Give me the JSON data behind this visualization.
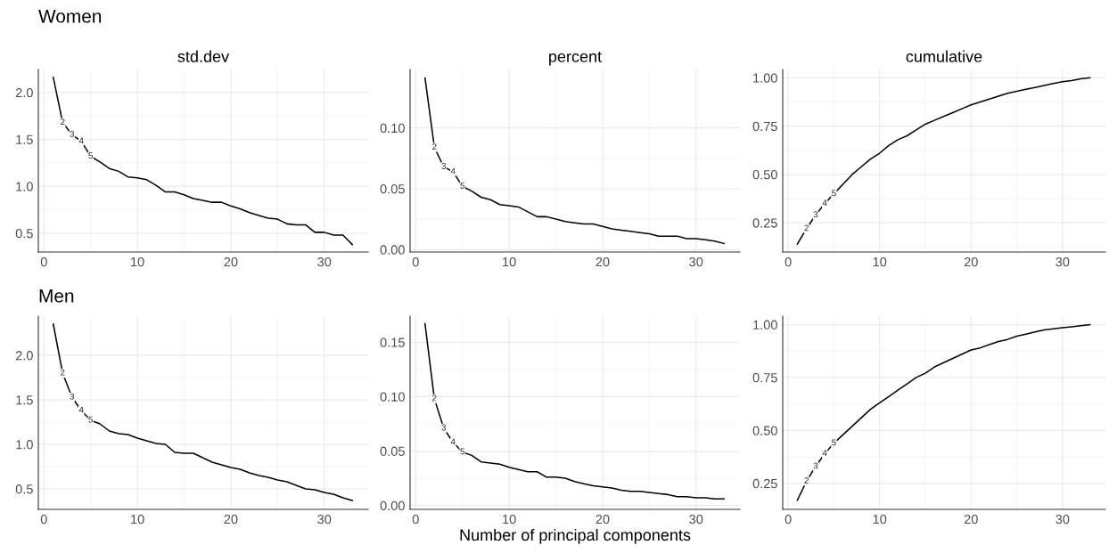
{
  "chart_data": [
    {
      "type": "line",
      "title": "std.dev",
      "annotations": [
        "Women",
        {
          "text": "2",
          "x": 2,
          "y": 1.68
        },
        {
          "text": "3",
          "x": 3,
          "y": 1.55
        },
        {
          "text": "4",
          "x": 4,
          "y": 1.48
        },
        {
          "text": "5",
          "x": 5,
          "y": 1.32
        }
      ],
      "x": [
        1,
        2,
        3,
        4,
        5,
        6,
        7,
        8,
        9,
        10,
        11,
        12,
        13,
        14,
        15,
        16,
        17,
        18,
        19,
        20,
        21,
        22,
        23,
        24,
        25,
        26,
        27,
        28,
        29,
        30,
        31,
        32,
        33
      ],
      "xlim": [
        -0.6,
        34.7
      ],
      "xticks": [
        0,
        10,
        20,
        30
      ],
      "ylim": [
        0.3,
        2.245
      ],
      "yticks": [
        {
          "value": 0.5,
          "label": "0.5"
        },
        {
          "value": 1.0,
          "label": "1.0"
        },
        {
          "value": 1.5,
          "label": "1.5"
        },
        {
          "value": 2.0,
          "label": "2.0"
        }
      ],
      "grid": true,
      "series": [
        {
          "color": "#000000",
          "values": [
            2.16,
            1.68,
            1.55,
            1.48,
            1.32,
            1.26,
            1.19,
            1.16,
            1.1,
            1.09,
            1.07,
            1.01,
            0.94,
            0.94,
            0.91,
            0.87,
            0.85,
            0.83,
            0.83,
            0.79,
            0.76,
            0.72,
            0.69,
            0.66,
            0.65,
            0.6,
            0.59,
            0.59,
            0.51,
            0.51,
            0.48,
            0.48,
            0.38
          ]
        }
      ]
    },
    {
      "type": "line",
      "title": "percent",
      "annotations": [
        {
          "text": "2",
          "x": 2,
          "y": 0.084
        },
        {
          "text": "3",
          "x": 3,
          "y": 0.068
        },
        {
          "text": "4",
          "x": 4,
          "y": 0.064
        },
        {
          "text": "5",
          "x": 5,
          "y": 0.052
        }
      ],
      "x": [
        1,
        2,
        3,
        4,
        5,
        6,
        7,
        8,
        9,
        10,
        11,
        12,
        13,
        14,
        15,
        16,
        17,
        18,
        19,
        20,
        21,
        22,
        23,
        24,
        25,
        26,
        27,
        28,
        29,
        30,
        31,
        32,
        33
      ],
      "xlim": [
        -0.6,
        34.7
      ],
      "xticks": [
        0,
        10,
        20,
        30
      ],
      "ylim": [
        -0.002,
        0.148
      ],
      "yticks": [
        {
          "value": 0.0,
          "label": "0.00"
        },
        {
          "value": 0.05,
          "label": "0.05"
        },
        {
          "value": 0.1,
          "label": "0.10"
        }
      ],
      "grid": true,
      "series": [
        {
          "color": "#000000",
          "values": [
            0.141,
            0.084,
            0.068,
            0.064,
            0.052,
            0.048,
            0.043,
            0.041,
            0.037,
            0.036,
            0.035,
            0.031,
            0.027,
            0.027,
            0.025,
            0.023,
            0.022,
            0.021,
            0.021,
            0.019,
            0.017,
            0.016,
            0.015,
            0.014,
            0.013,
            0.011,
            0.011,
            0.011,
            0.009,
            0.009,
            0.008,
            0.007,
            0.005
          ]
        }
      ]
    },
    {
      "type": "line",
      "title": "cumulative",
      "annotations": [
        {
          "text": "2",
          "x": 2,
          "y": 0.22
        },
        {
          "text": "3",
          "x": 3,
          "y": 0.29
        },
        {
          "text": "4",
          "x": 4,
          "y": 0.35
        },
        {
          "text": "5",
          "x": 5,
          "y": 0.4
        }
      ],
      "x": [
        1,
        2,
        3,
        4,
        5,
        6,
        7,
        8,
        9,
        10,
        11,
        12,
        13,
        14,
        15,
        16,
        17,
        18,
        19,
        20,
        21,
        22,
        23,
        24,
        25,
        26,
        27,
        28,
        29,
        30,
        31,
        32,
        33
      ],
      "xlim": [
        -0.6,
        34.7
      ],
      "xticks": [
        0,
        10,
        20,
        30
      ],
      "ylim": [
        0.099,
        1.043
      ],
      "yticks": [
        {
          "value": 0.25,
          "label": "0.25"
        },
        {
          "value": 0.5,
          "label": "0.50"
        },
        {
          "value": 0.75,
          "label": "0.75"
        },
        {
          "value": 1.0,
          "label": "1.00"
        }
      ],
      "grid": true,
      "series": [
        {
          "color": "#000000",
          "values": [
            0.14,
            0.22,
            0.29,
            0.35,
            0.4,
            0.45,
            0.5,
            0.54,
            0.58,
            0.61,
            0.65,
            0.68,
            0.7,
            0.73,
            0.76,
            0.78,
            0.8,
            0.82,
            0.84,
            0.86,
            0.875,
            0.89,
            0.905,
            0.92,
            0.93,
            0.94,
            0.95,
            0.96,
            0.97,
            0.98,
            0.985,
            0.995,
            1.0
          ]
        }
      ]
    },
    {
      "type": "line",
      "annotations": [
        "Men",
        {
          "text": "2",
          "x": 2,
          "y": 1.8
        },
        {
          "text": "3",
          "x": 3,
          "y": 1.53
        },
        {
          "text": "4",
          "x": 4,
          "y": 1.38
        },
        {
          "text": "5",
          "x": 5,
          "y": 1.27
        }
      ],
      "x": [
        1,
        2,
        3,
        4,
        5,
        6,
        7,
        8,
        9,
        10,
        11,
        12,
        13,
        14,
        15,
        16,
        17,
        18,
        19,
        20,
        21,
        22,
        23,
        24,
        25,
        26,
        27,
        28,
        29,
        30,
        31,
        32,
        33
      ],
      "xlim": [
        -0.6,
        34.7
      ],
      "xticks": [
        0,
        10,
        20,
        30
      ],
      "ylim": [
        0.27,
        2.44
      ],
      "yticks": [
        {
          "value": 0.5,
          "label": "0.5"
        },
        {
          "value": 1.0,
          "label": "1.0"
        },
        {
          "value": 1.5,
          "label": "1.5"
        },
        {
          "value": 2.0,
          "label": "2.0"
        }
      ],
      "grid": true,
      "series": [
        {
          "color": "#000000",
          "values": [
            2.35,
            1.8,
            1.53,
            1.38,
            1.27,
            1.23,
            1.15,
            1.12,
            1.11,
            1.07,
            1.04,
            1.01,
            1.0,
            0.91,
            0.9,
            0.9,
            0.85,
            0.8,
            0.77,
            0.74,
            0.72,
            0.68,
            0.65,
            0.63,
            0.6,
            0.58,
            0.54,
            0.5,
            0.49,
            0.46,
            0.44,
            0.4,
            0.37
          ]
        }
      ]
    },
    {
      "type": "line",
      "xlabel": "Number of principal components",
      "annotations": [
        {
          "text": "2",
          "x": 2,
          "y": 0.098
        },
        {
          "text": "3",
          "x": 3,
          "y": 0.071
        },
        {
          "text": "4",
          "x": 4,
          "y": 0.058
        },
        {
          "text": "5",
          "x": 5,
          "y": 0.049
        }
      ],
      "x": [
        1,
        2,
        3,
        4,
        5,
        6,
        7,
        8,
        9,
        10,
        11,
        12,
        13,
        14,
        15,
        16,
        17,
        18,
        19,
        20,
        21,
        22,
        23,
        24,
        25,
        26,
        27,
        28,
        29,
        30,
        31,
        32,
        33
      ],
      "xlim": [
        -0.6,
        34.7
      ],
      "xticks": [
        0,
        10,
        20,
        30
      ],
      "ylim": [
        -0.0036,
        0.174
      ],
      "yticks": [
        {
          "value": 0.0,
          "label": "0.00"
        },
        {
          "value": 0.05,
          "label": "0.05"
        },
        {
          "value": 0.1,
          "label": "0.10"
        },
        {
          "value": 0.15,
          "label": "0.15"
        }
      ],
      "grid": true,
      "series": [
        {
          "color": "#000000",
          "values": [
            0.167,
            0.098,
            0.071,
            0.058,
            0.049,
            0.046,
            0.04,
            0.039,
            0.038,
            0.035,
            0.033,
            0.031,
            0.031,
            0.026,
            0.026,
            0.025,
            0.022,
            0.02,
            0.018,
            0.017,
            0.016,
            0.014,
            0.013,
            0.013,
            0.012,
            0.011,
            0.01,
            0.008,
            0.008,
            0.007,
            0.007,
            0.006,
            0.006
          ]
        }
      ]
    },
    {
      "type": "line",
      "annotations": [
        {
          "text": "2",
          "x": 2,
          "y": 0.26
        },
        {
          "text": "3",
          "x": 3,
          "y": 0.33
        },
        {
          "text": "4",
          "x": 4,
          "y": 0.39
        },
        {
          "text": "5",
          "x": 5,
          "y": 0.44
        }
      ],
      "x": [
        1,
        2,
        3,
        4,
        5,
        6,
        7,
        8,
        9,
        10,
        11,
        12,
        13,
        14,
        15,
        16,
        17,
        18,
        19,
        20,
        21,
        22,
        23,
        24,
        25,
        26,
        27,
        28,
        29,
        30,
        31,
        32,
        33
      ],
      "xlim": [
        -0.6,
        34.7
      ],
      "xticks": [
        0,
        10,
        20,
        30
      ],
      "ylim": [
        0.127,
        1.04
      ],
      "yticks": [
        {
          "value": 0.25,
          "label": "0.25"
        },
        {
          "value": 0.5,
          "label": "0.50"
        },
        {
          "value": 0.75,
          "label": "0.75"
        },
        {
          "value": 1.0,
          "label": "1.00"
        }
      ],
      "grid": true,
      "series": [
        {
          "color": "#000000",
          "values": [
            0.17,
            0.26,
            0.33,
            0.39,
            0.44,
            0.48,
            0.52,
            0.56,
            0.6,
            0.63,
            0.66,
            0.69,
            0.72,
            0.75,
            0.77,
            0.8,
            0.82,
            0.84,
            0.86,
            0.88,
            0.89,
            0.905,
            0.92,
            0.93,
            0.945,
            0.955,
            0.965,
            0.975,
            0.98,
            0.985,
            0.99,
            0.995,
            1.0
          ]
        }
      ]
    }
  ]
}
